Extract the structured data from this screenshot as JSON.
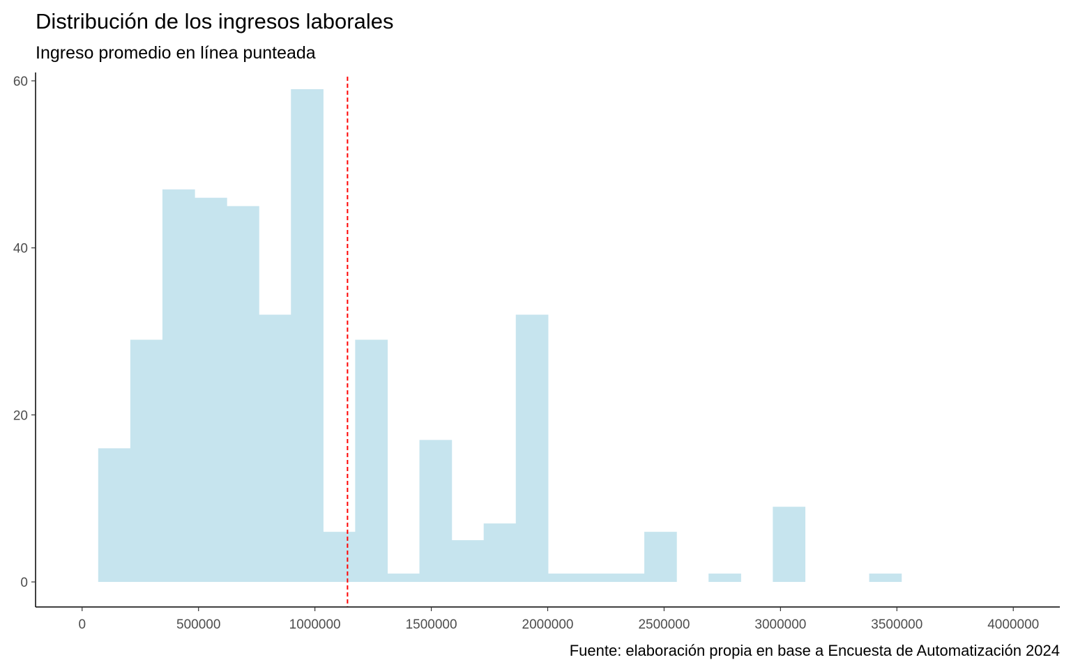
{
  "chart_data": {
    "type": "bar",
    "title": "Distribución de los ingresos laborales",
    "subtitle": "Ingreso promedio en línea punteada",
    "caption": "Fuente: elaboración propia en base a Encuesta de Automatización 2024",
    "xlabel": "",
    "ylabel": "",
    "xlim": [
      -200000,
      4200000
    ],
    "ylim": [
      -3,
      61
    ],
    "x_ticks": [
      0,
      500000,
      1000000,
      1500000,
      2000000,
      2500000,
      3000000,
      3500000,
      4000000
    ],
    "x_tick_labels": [
      "0",
      "500000",
      "1000000",
      "1500000",
      "2000000",
      "2500000",
      "3000000",
      "3500000",
      "4000000"
    ],
    "y_ticks": [
      0,
      20,
      40,
      60
    ],
    "y_tick_labels": [
      "0",
      "20",
      "40",
      "60"
    ],
    "bin_width": 138000,
    "bins": [
      {
        "x_start": 69000,
        "count": 16
      },
      {
        "x_start": 207000,
        "count": 29
      },
      {
        "x_start": 345000,
        "count": 47
      },
      {
        "x_start": 483000,
        "count": 46
      },
      {
        "x_start": 621000,
        "count": 45
      },
      {
        "x_start": 759000,
        "count": 32
      },
      {
        "x_start": 897000,
        "count": 59
      },
      {
        "x_start": 1035000,
        "count": 6
      },
      {
        "x_start": 1173000,
        "count": 29
      },
      {
        "x_start": 1311000,
        "count": 1
      },
      {
        "x_start": 1449000,
        "count": 17
      },
      {
        "x_start": 1587000,
        "count": 5
      },
      {
        "x_start": 1725000,
        "count": 7
      },
      {
        "x_start": 1863000,
        "count": 32
      },
      {
        "x_start": 2001000,
        "count": 1
      },
      {
        "x_start": 2139000,
        "count": 1
      },
      {
        "x_start": 2277000,
        "count": 1
      },
      {
        "x_start": 2415000,
        "count": 6
      },
      {
        "x_start": 2553000,
        "count": 0
      },
      {
        "x_start": 2691000,
        "count": 1
      },
      {
        "x_start": 2829000,
        "count": 0
      },
      {
        "x_start": 2967000,
        "count": 9
      },
      {
        "x_start": 3105000,
        "count": 0
      },
      {
        "x_start": 3243000,
        "count": 0
      },
      {
        "x_start": 3381000,
        "count": 1
      }
    ],
    "mean_line": 1140000,
    "grid": false,
    "legend": "none",
    "colors": {
      "bar_fill": "#c6e4ee",
      "mean_line": "#ff0000",
      "axis": "#000000",
      "tick_text": "#4d4d4d"
    }
  }
}
